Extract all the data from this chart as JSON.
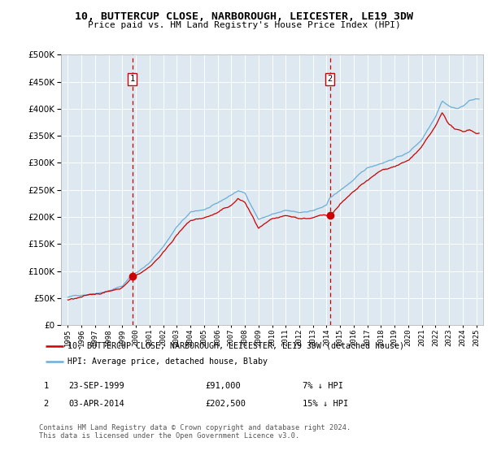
{
  "title": "10, BUTTERCUP CLOSE, NARBOROUGH, LEICESTER, LE19 3DW",
  "subtitle": "Price paid vs. HM Land Registry's House Price Index (HPI)",
  "ylim": [
    0,
    500000
  ],
  "yticks": [
    0,
    50000,
    100000,
    150000,
    200000,
    250000,
    300000,
    350000,
    400000,
    450000,
    500000
  ],
  "sale1_date": 1999.73,
  "sale1_price": 91000,
  "sale2_date": 2014.25,
  "sale2_price": 202500,
  "hpi_color": "#6baed6",
  "price_color": "#cc0000",
  "dashed_color": "#cc0000",
  "bg_color": "#dde8f0",
  "legend_label1": "10, BUTTERCUP CLOSE, NARBOROUGH, LEICESTER, LE19 3DW (detached house)",
  "legend_label2": "HPI: Average price, detached house, Blaby",
  "table_row1": [
    "1",
    "23-SEP-1999",
    "£91,000",
    "7% ↓ HPI"
  ],
  "table_row2": [
    "2",
    "03-APR-2014",
    "£202,500",
    "15% ↓ HPI"
  ],
  "footer": "Contains HM Land Registry data © Crown copyright and database right 2024.\nThis data is licensed under the Open Government Licence v3.0.",
  "xlim_start": 1994.5,
  "xlim_end": 2025.5,
  "hpi_keypoints": [
    [
      1995.0,
      52000
    ],
    [
      1996.0,
      56000
    ],
    [
      1997.0,
      61000
    ],
    [
      1998.0,
      67000
    ],
    [
      1999.0,
      75000
    ],
    [
      1999.73,
      97000
    ],
    [
      2000.0,
      100000
    ],
    [
      2001.0,
      118000
    ],
    [
      2002.0,
      148000
    ],
    [
      2003.0,
      185000
    ],
    [
      2004.0,
      210000
    ],
    [
      2005.0,
      215000
    ],
    [
      2006.0,
      225000
    ],
    [
      2007.0,
      240000
    ],
    [
      2007.5,
      248000
    ],
    [
      2008.0,
      243000
    ],
    [
      2008.5,
      220000
    ],
    [
      2009.0,
      196000
    ],
    [
      2009.5,
      200000
    ],
    [
      2010.0,
      205000
    ],
    [
      2011.0,
      210000
    ],
    [
      2012.0,
      205000
    ],
    [
      2013.0,
      210000
    ],
    [
      2014.0,
      218000
    ],
    [
      2014.25,
      232000
    ],
    [
      2015.0,
      245000
    ],
    [
      2016.0,
      265000
    ],
    [
      2017.0,
      285000
    ],
    [
      2018.0,
      295000
    ],
    [
      2019.0,
      305000
    ],
    [
      2020.0,
      315000
    ],
    [
      2021.0,
      340000
    ],
    [
      2022.0,
      385000
    ],
    [
      2022.5,
      415000
    ],
    [
      2023.0,
      405000
    ],
    [
      2023.5,
      400000
    ],
    [
      2024.0,
      405000
    ],
    [
      2024.5,
      415000
    ],
    [
      2025.0,
      418000
    ]
  ],
  "price_keypoints": [
    [
      1995.0,
      47000
    ],
    [
      1996.0,
      51000
    ],
    [
      1997.0,
      57000
    ],
    [
      1998.0,
      63000
    ],
    [
      1999.0,
      72000
    ],
    [
      1999.73,
      91000
    ],
    [
      2000.0,
      95000
    ],
    [
      2001.0,
      112000
    ],
    [
      2002.0,
      140000
    ],
    [
      2003.0,
      175000
    ],
    [
      2004.0,
      200000
    ],
    [
      2005.0,
      205000
    ],
    [
      2006.0,
      215000
    ],
    [
      2007.0,
      228000
    ],
    [
      2007.5,
      240000
    ],
    [
      2008.0,
      234000
    ],
    [
      2008.5,
      210000
    ],
    [
      2009.0,
      185000
    ],
    [
      2009.5,
      192000
    ],
    [
      2010.0,
      198000
    ],
    [
      2011.0,
      202000
    ],
    [
      2012.0,
      198000
    ],
    [
      2013.0,
      200000
    ],
    [
      2014.0,
      205000
    ],
    [
      2014.25,
      202500
    ],
    [
      2015.0,
      228000
    ],
    [
      2016.0,
      248000
    ],
    [
      2017.0,
      268000
    ],
    [
      2018.0,
      285000
    ],
    [
      2019.0,
      295000
    ],
    [
      2020.0,
      305000
    ],
    [
      2021.0,
      330000
    ],
    [
      2022.0,
      365000
    ],
    [
      2022.5,
      390000
    ],
    [
      2023.0,
      370000
    ],
    [
      2023.5,
      360000
    ],
    [
      2024.0,
      355000
    ],
    [
      2024.5,
      360000
    ],
    [
      2025.0,
      355000
    ]
  ]
}
